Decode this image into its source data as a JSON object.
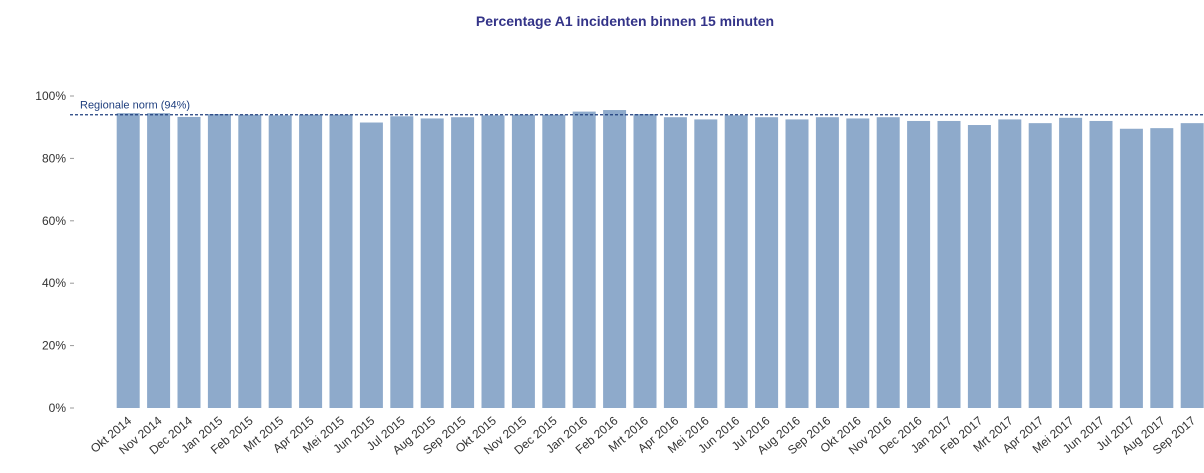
{
  "chart_data": {
    "type": "bar",
    "title": "Percentage A1 incidenten binnen 15 minuten",
    "categories": [
      "Okt 2014",
      "Nov 2014",
      "Dec 2014",
      "Jan 2015",
      "Feb 2015",
      "Mrt 2015",
      "Apr 2015",
      "Mei 2015",
      "Jun 2015",
      "Jul 2015",
      "Aug 2015",
      "Sep 2015",
      "Okt 2015",
      "Nov 2015",
      "Dec 2015",
      "Jan 2016",
      "Feb 2016",
      "Mrt 2016",
      "Apr 2016",
      "Mei 2016",
      "Jun 2016",
      "Jul 2016",
      "Aug 2016",
      "Sep 2016",
      "Okt 2016",
      "Nov 2016",
      "Dec 2016",
      "Jan 2017",
      "Feb 2017",
      "Mrt 2017",
      "Apr 2017",
      "Mei 2017",
      "Jun 2017",
      "Jul 2017",
      "Aug 2017",
      "Sep 2017"
    ],
    "values": [
      94.5,
      94.5,
      93.3,
      94.2,
      94,
      93.8,
      94,
      94,
      91.5,
      93.5,
      92.8,
      93.2,
      93.8,
      94,
      94,
      95,
      95.5,
      94.2,
      93.2,
      92.5,
      93.8,
      93.2,
      92.5,
      93.2,
      92.8,
      93.2,
      92,
      92,
      90.7,
      92.5,
      91.3,
      93,
      92,
      89.5,
      89.7,
      91.3
    ],
    "color": "#8eaacb",
    "ylim": [
      0,
      100
    ],
    "yticks": [
      {
        "value": 0,
        "label": "0%"
      },
      {
        "value": 20,
        "label": "20%"
      },
      {
        "value": 40,
        "label": "40%"
      },
      {
        "value": 60,
        "label": "60%"
      },
      {
        "value": 80,
        "label": "80%"
      },
      {
        "value": 100,
        "label": "100%"
      }
    ],
    "reference_line": {
      "label": "Regionale norm (94%)",
      "value": 94,
      "color": "#1f3f7f"
    }
  }
}
